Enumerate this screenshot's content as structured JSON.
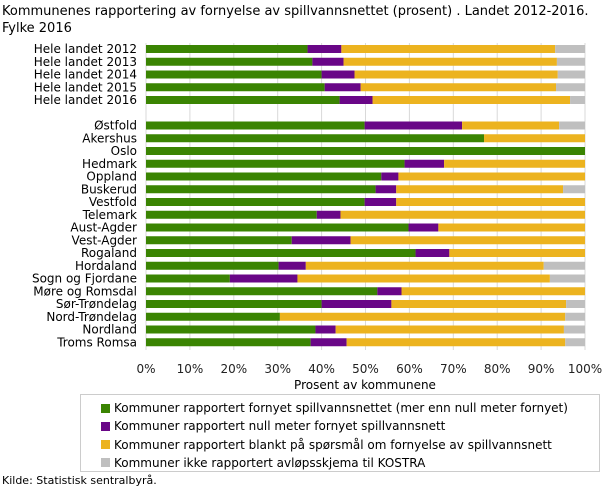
{
  "chart_data": {
    "type": "bar",
    "orientation": "horizontal",
    "stacked": true,
    "title": "Kommunenes rapportering av fornyelse av spillvannsnettet (prosent) . Landet 2012-2016. Fylke 2016",
    "xlabel": "Prosent av kommunene",
    "xlim": [
      0,
      100
    ],
    "xticks": [
      "0%",
      "10%",
      "20%",
      "30%",
      "40%",
      "50%",
      "60%",
      "70%",
      "80%",
      "90%",
      "100%"
    ],
    "grid": true,
    "legend_position": "bottom",
    "categories": [
      "Hele landet 2012",
      "Hele landet 2013",
      "Hele landet 2014",
      "Hele landet 2015",
      "Hele landet 2016",
      "",
      "Østfold",
      "Akershus",
      "Oslo",
      "Hedmark",
      "Oppland",
      "Buskerud",
      "Vestfold",
      "Telemark",
      "Aust-Agder",
      "Vest-Agder",
      "Rogaland",
      "Hordaland",
      "Sogn og Fjordane",
      "Møre og Romsdal",
      "Sør-Trøndelag",
      "Nord-Trøndelag",
      "Nordland",
      "Troms Romsa"
    ],
    "series": [
      {
        "name": "Kommuner rapportert fornyet spillvannsnettet (mer enn null meter fornyet)",
        "color": "#3a8402",
        "values": [
          36.8,
          37.9,
          40.0,
          40.7,
          44.1,
          null,
          49.8,
          77.0,
          100,
          58.9,
          53.6,
          52.3,
          49.8,
          38.9,
          59.8,
          33.2,
          61.4,
          30.2,
          19.1,
          52.7,
          40.0,
          30.5,
          38.6,
          37.5
        ]
      },
      {
        "name": "Kommuner rapportert null meter fornyet spillvannsnett",
        "color": "#690687",
        "values": [
          7.7,
          7.1,
          7.5,
          8.2,
          7.5,
          null,
          22.2,
          0,
          0,
          9.0,
          3.9,
          4.7,
          7.2,
          5.4,
          6.8,
          13.4,
          7.7,
          6.2,
          15.4,
          5.5,
          15.9,
          0,
          4.6,
          8.2
        ]
      },
      {
        "name": "Kommuner rapportert blankt på spørsmål om fornyelse av spillvannsnett",
        "color": "#ecb31f",
        "values": [
          48.7,
          48.6,
          46.3,
          44.5,
          45.0,
          null,
          22.1,
          23.0,
          0,
          32.1,
          42.5,
          38.0,
          43.0,
          55.7,
          33.4,
          53.4,
          30.9,
          54.2,
          57.5,
          41.8,
          39.8,
          65.0,
          52.0,
          49.8
        ]
      },
      {
        "name": "Kommuner ikke rapportert avløpsskjema til KOSTRA",
        "color": "#bfbfbf",
        "values": [
          6.8,
          6.4,
          6.2,
          6.6,
          3.4,
          null,
          5.9,
          0,
          0,
          0,
          0,
          5.0,
          0,
          0,
          0,
          0,
          0,
          9.4,
          8.0,
          0,
          4.3,
          4.5,
          4.8,
          4.5
        ]
      }
    ]
  },
  "source": "Kilde: Statistisk sentralbyrå."
}
